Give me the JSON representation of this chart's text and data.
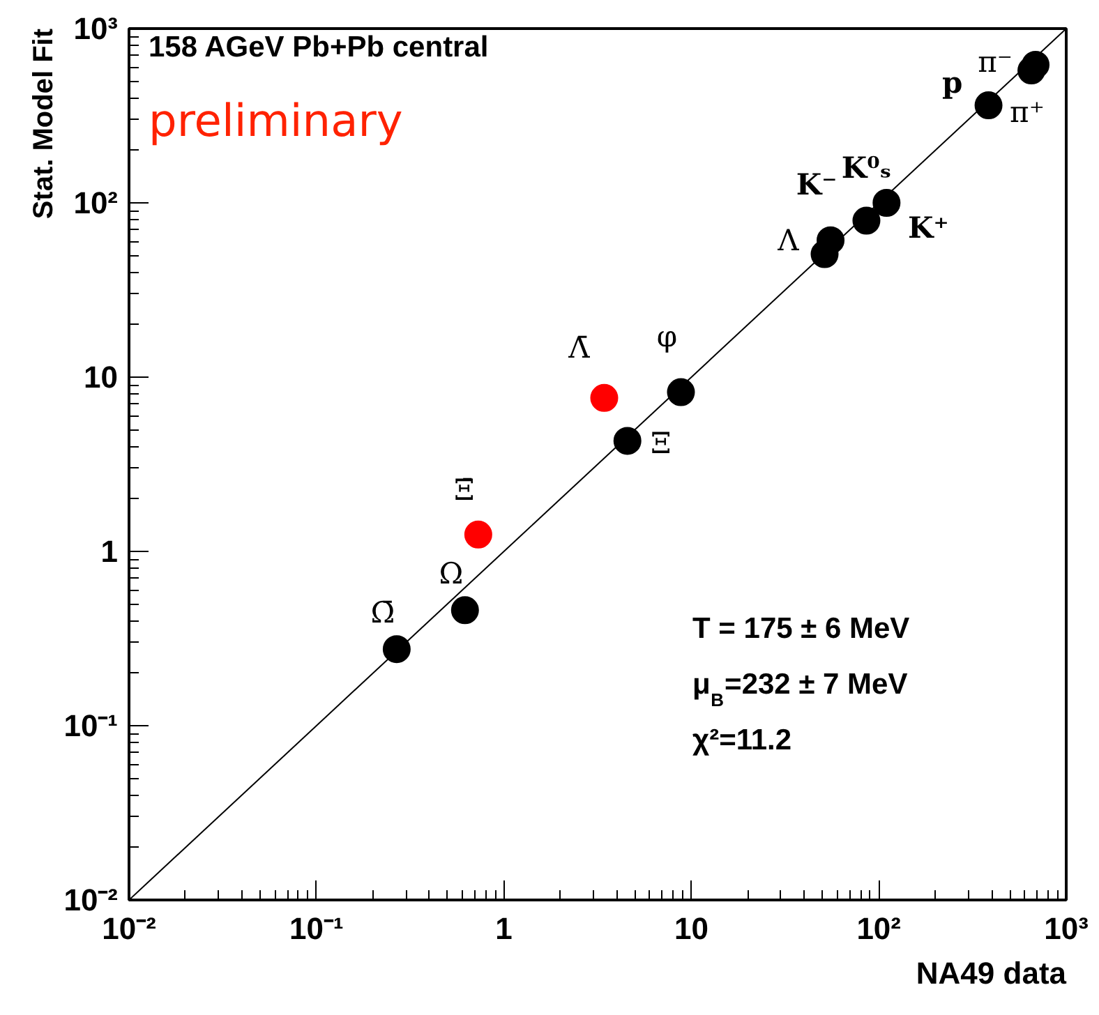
{
  "chart_data": {
    "type": "scatter",
    "xlabel": "NA49 data",
    "ylabel": "Stat. Model Fit",
    "log": "xy",
    "grid": false,
    "xlim": [
      0.01,
      1000
    ],
    "ylim": [
      0.01,
      1000
    ],
    "xticks": [
      {
        "value": 0.01,
        "label": "10⁻²"
      },
      {
        "value": 0.1,
        "label": "10⁻¹"
      },
      1,
      10,
      {
        "value": 100,
        "label": "10²"
      },
      {
        "value": 1000,
        "label": "10³"
      }
    ],
    "yticks": [
      {
        "value": 0.01,
        "label": "10⁻²"
      },
      {
        "value": 0.1,
        "label": "10⁻¹"
      },
      1,
      10,
      {
        "value": 100,
        "label": "10²"
      },
      {
        "value": 1000,
        "label": "10³"
      }
    ],
    "series": [
      {
        "type": "line",
        "color": "#000000",
        "line_style": "solid",
        "x": [
          0.01,
          1000
        ],
        "values": [
          0.01,
          1000
        ]
      },
      {
        "marker": "circle",
        "color": "#000000",
        "x": [
          0.268,
          0.62,
          4.56,
          8.8,
          51.4,
          55.3,
          85.9,
          110,
          385,
          652,
          686
        ],
        "values": [
          0.275,
          0.46,
          4.31,
          8.2,
          50.8,
          61,
          79,
          100,
          363,
          575,
          620
        ]
      },
      {
        "marker": "circle",
        "color": "#ff0000",
        "x": [
          0.73,
          3.43
        ],
        "values": [
          1.25,
          7.6
        ]
      }
    ],
    "annotations": [
      "158 AGeV Pb+Pb central",
      "preliminary",
      "T = 175 ± 6 MeV",
      "μ$_{B}$=232 ± 7 MeV",
      "χ²=11.2",
      {
        "text": "Ω̄",
        "x": 0.268,
        "y": 0.275
      },
      {
        "text": "Ω",
        "x": 0.62,
        "y": 0.46
      },
      {
        "text": "Ξ̄",
        "x": 0.73,
        "y": 1.25
      },
      {
        "text": "Λ̄",
        "x": 3.43,
        "y": 7.6
      },
      {
        "text": "Ξ",
        "x": 4.56,
        "y": 4.31
      },
      {
        "text": "φ",
        "x": 8.8,
        "y": 8.2
      },
      {
        "text": "Λ",
        "x": 51.4,
        "y": 50.8
      },
      {
        "text": "K⁻",
        "x": 55.3,
        "y": 61
      },
      {
        "text": "K⁰ₛ",
        "x": 85.9,
        "y": 79
      },
      {
        "text": "K⁺",
        "x": 110,
        "y": 100
      },
      {
        "text": "p",
        "x": 385,
        "y": 363
      },
      {
        "text": "π⁻",
        "x": 652,
        "y": 575
      },
      {
        "text": "π⁺",
        "x": 686,
        "y": 620
      }
    ]
  }
}
